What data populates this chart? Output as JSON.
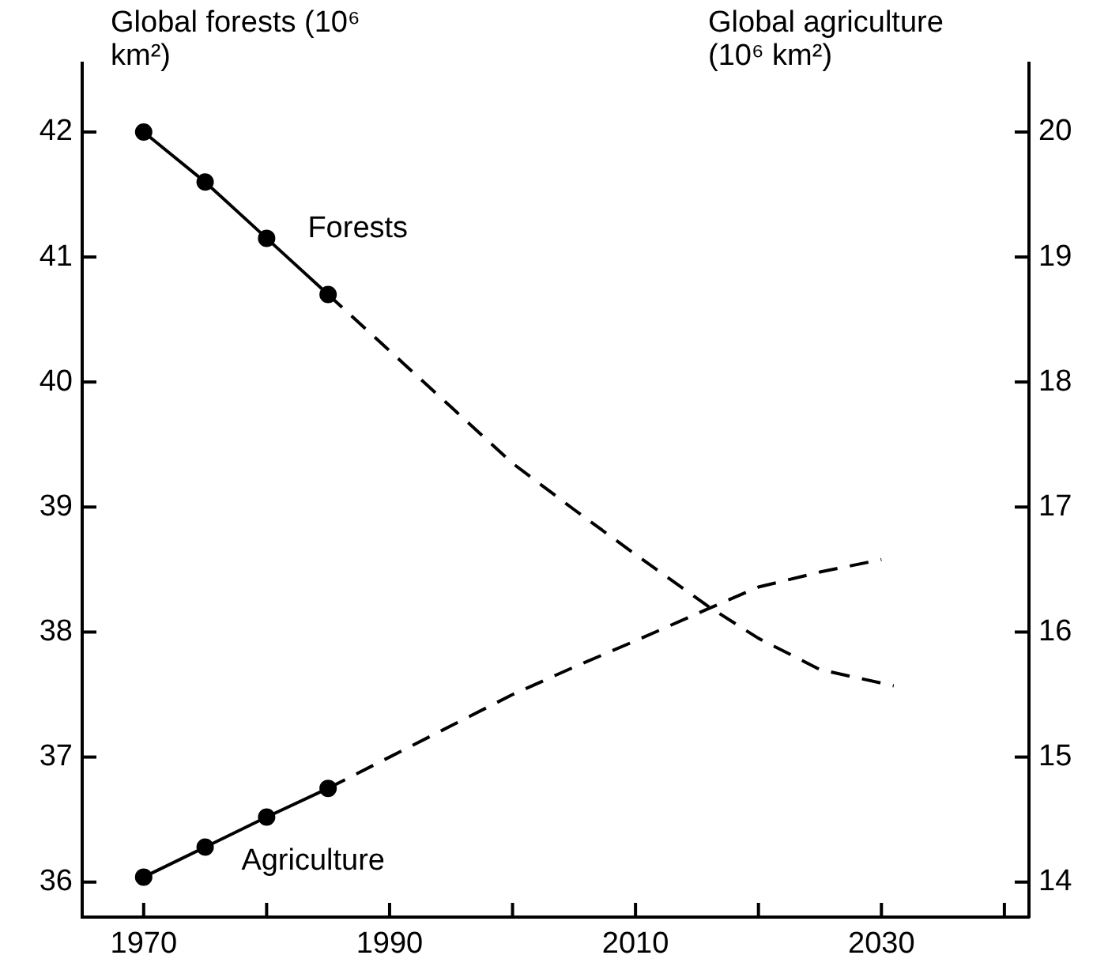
{
  "chart_data": {
    "type": "line",
    "ylabel": "Global forests (10⁶ km²)",
    "y2label": "Global agriculture (10⁶ km²)",
    "xlim": [
      1965,
      2042
    ],
    "xticks": [
      1970,
      {
        "value": 1980,
        "label": null
      },
      1990,
      {
        "value": 2000,
        "label": null
      },
      2010,
      {
        "value": 2020,
        "label": null
      },
      2030,
      {
        "value": 2040,
        "label": null
      }
    ],
    "ylim": [
      35.72,
      42.55
    ],
    "yticks": [
      36,
      37,
      38,
      39,
      40,
      41,
      42
    ],
    "y2lim": [
      13.72,
      20.55
    ],
    "y2ticks": [
      14,
      15,
      16,
      17,
      18,
      19,
      20
    ],
    "grid": false,
    "legend": false,
    "series": [
      {
        "name": "Forests",
        "color": "#000000",
        "x": [
          1970,
          1975,
          1980,
          1985
        ],
        "values": [
          42.0,
          41.6,
          41.15,
          40.7
        ],
        "marker": "circle",
        "line_style": "solid"
      },
      {
        "color": "#000000",
        "x": [
          1985,
          1990,
          1995,
          2000,
          2005,
          2010,
          2016,
          2020,
          2025,
          2031
        ],
        "values": [
          40.7,
          40.25,
          39.8,
          39.35,
          38.98,
          38.62,
          38.2,
          37.95,
          37.7,
          37.57
        ],
        "marker": "none",
        "line_style": "dashed"
      },
      {
        "name": "Agriculture",
        "color": "#000000",
        "axis": "y2",
        "x": [
          1970,
          1975,
          1980,
          1985
        ],
        "values": [
          14.04,
          14.28,
          14.52,
          14.75
        ],
        "marker": "circle",
        "line_style": "solid"
      },
      {
        "color": "#000000",
        "axis": "y2",
        "x": [
          1985,
          1990,
          1995,
          2000,
          2005,
          2010,
          2016,
          2020,
          2025,
          2030
        ],
        "values": [
          14.75,
          15.0,
          15.25,
          15.5,
          15.72,
          15.93,
          16.19,
          16.36,
          16.48,
          16.58
        ],
        "marker": "none",
        "line_style": "dashed"
      }
    ]
  }
}
